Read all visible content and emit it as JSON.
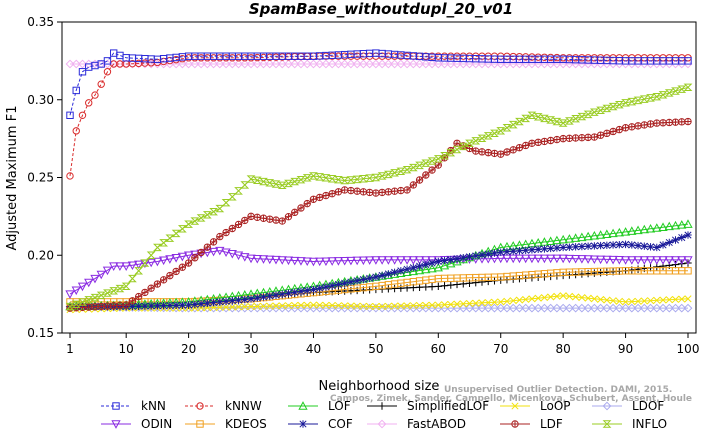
{
  "chart_data": {
    "type": "line",
    "title": "SpamBase_withoutdupl_20_v01",
    "xlabel": "Neighborhood size",
    "ylabel": "Adjusted Maximum F1",
    "xlim": [
      1,
      100
    ],
    "ylim": [
      0.15,
      0.35
    ],
    "xticks": [
      1,
      10,
      20,
      30,
      40,
      50,
      60,
      70,
      80,
      90,
      100
    ],
    "yticks": [
      0.15,
      0.2,
      0.25,
      0.3,
      0.35
    ],
    "ytick_labels": [
      "0.15",
      "0.20",
      "0.25",
      "0.30",
      "0.35"
    ],
    "grid": false,
    "legend_position": "bottom",
    "watermark": [
      "Campos, Zimek, Sander, Campello, Micenkova, Schubert, Assent, Houle",
      "Unsupervised Outlier Detection. DAMI, 2015."
    ],
    "series": [
      {
        "name": "kNN",
        "color": "#2b2bd9",
        "marker": "square",
        "dashed": true,
        "points": [
          [
            1,
            0.29
          ],
          [
            2,
            0.306
          ],
          [
            3,
            0.318
          ],
          [
            4,
            0.321
          ],
          [
            5,
            0.322
          ],
          [
            6,
            0.323
          ],
          [
            7,
            0.325
          ],
          [
            8,
            0.33
          ],
          [
            10,
            0.327
          ],
          [
            15,
            0.326
          ],
          [
            20,
            0.328
          ],
          [
            30,
            0.328
          ],
          [
            40,
            0.328
          ],
          [
            50,
            0.33
          ],
          [
            60,
            0.327
          ],
          [
            70,
            0.326
          ],
          [
            80,
            0.326
          ],
          [
            90,
            0.325
          ],
          [
            100,
            0.325
          ]
        ]
      },
      {
        "name": "kNNW",
        "color": "#d92b2b",
        "marker": "circle",
        "dashed": true,
        "points": [
          [
            1,
            0.251
          ],
          [
            2,
            0.28
          ],
          [
            3,
            0.29
          ],
          [
            4,
            0.298
          ],
          [
            5,
            0.303
          ],
          [
            6,
            0.31
          ],
          [
            7,
            0.318
          ],
          [
            8,
            0.323
          ],
          [
            10,
            0.323
          ],
          [
            15,
            0.324
          ],
          [
            20,
            0.327
          ],
          [
            30,
            0.327
          ],
          [
            40,
            0.328
          ],
          [
            50,
            0.328
          ],
          [
            60,
            0.328
          ],
          [
            70,
            0.328
          ],
          [
            80,
            0.327
          ],
          [
            90,
            0.327
          ],
          [
            100,
            0.327
          ]
        ]
      },
      {
        "name": "LOF",
        "color": "#22cc22",
        "marker": "triangle-up",
        "points": [
          [
            1,
            0.167
          ],
          [
            10,
            0.168
          ],
          [
            20,
            0.17
          ],
          [
            30,
            0.175
          ],
          [
            40,
            0.18
          ],
          [
            50,
            0.186
          ],
          [
            60,
            0.192
          ],
          [
            70,
            0.205
          ],
          [
            80,
            0.21
          ],
          [
            90,
            0.215
          ],
          [
            100,
            0.22
          ]
        ]
      },
      {
        "name": "SimplifiedLOF",
        "color": "#000000",
        "marker": "plus",
        "points": [
          [
            1,
            0.167
          ],
          [
            10,
            0.167
          ],
          [
            20,
            0.168
          ],
          [
            30,
            0.172
          ],
          [
            40,
            0.176
          ],
          [
            50,
            0.178
          ],
          [
            60,
            0.18
          ],
          [
            70,
            0.184
          ],
          [
            80,
            0.187
          ],
          [
            90,
            0.19
          ],
          [
            100,
            0.195
          ]
        ]
      },
      {
        "name": "LoOP",
        "color": "#f2e20c",
        "marker": "x",
        "points": [
          [
            1,
            0.165
          ],
          [
            10,
            0.166
          ],
          [
            20,
            0.166
          ],
          [
            30,
            0.167
          ],
          [
            40,
            0.168
          ],
          [
            50,
            0.167
          ],
          [
            60,
            0.168
          ],
          [
            70,
            0.17
          ],
          [
            80,
            0.174
          ],
          [
            90,
            0.17
          ],
          [
            100,
            0.172
          ]
        ]
      },
      {
        "name": "LDOF",
        "color": "#aaaaee",
        "marker": "diamond",
        "points": [
          [
            1,
            0.167
          ],
          [
            20,
            0.166
          ],
          [
            40,
            0.166
          ],
          [
            60,
            0.166
          ],
          [
            80,
            0.166
          ],
          [
            100,
            0.166
          ]
        ]
      },
      {
        "name": "ODIN",
        "color": "#8a2be2",
        "marker": "triangle-down",
        "points": [
          [
            1,
            0.175
          ],
          [
            5,
            0.185
          ],
          [
            8,
            0.193
          ],
          [
            10,
            0.193
          ],
          [
            15,
            0.196
          ],
          [
            20,
            0.2
          ],
          [
            25,
            0.203
          ],
          [
            30,
            0.198
          ],
          [
            40,
            0.196
          ],
          [
            50,
            0.197
          ],
          [
            60,
            0.197
          ],
          [
            70,
            0.198
          ],
          [
            80,
            0.198
          ],
          [
            90,
            0.197
          ],
          [
            100,
            0.197
          ]
        ]
      },
      {
        "name": "KDEOS",
        "color": "#f0a020",
        "marker": "square",
        "points": [
          [
            1,
            0.17
          ],
          [
            10,
            0.17
          ],
          [
            20,
            0.17
          ],
          [
            30,
            0.172
          ],
          [
            40,
            0.176
          ],
          [
            50,
            0.18
          ],
          [
            60,
            0.185
          ],
          [
            70,
            0.186
          ],
          [
            80,
            0.189
          ],
          [
            90,
            0.19
          ],
          [
            100,
            0.19
          ]
        ]
      },
      {
        "name": "COF",
        "color": "#1a1a99",
        "marker": "star",
        "points": [
          [
            1,
            0.167
          ],
          [
            10,
            0.167
          ],
          [
            20,
            0.168
          ],
          [
            30,
            0.172
          ],
          [
            40,
            0.178
          ],
          [
            50,
            0.186
          ],
          [
            60,
            0.196
          ],
          [
            70,
            0.202
          ],
          [
            80,
            0.205
          ],
          [
            90,
            0.207
          ],
          [
            95,
            0.205
          ],
          [
            100,
            0.213
          ]
        ]
      },
      {
        "name": "FastABOD",
        "color": "#f0b0f0",
        "marker": "diamond",
        "points": [
          [
            1,
            0.323
          ],
          [
            20,
            0.323
          ],
          [
            40,
            0.323
          ],
          [
            60,
            0.323
          ],
          [
            80,
            0.323
          ],
          [
            100,
            0.323
          ]
        ]
      },
      {
        "name": "LDF",
        "color": "#aa2222",
        "marker": "circle-plus",
        "points": [
          [
            1,
            0.166
          ],
          [
            10,
            0.168
          ],
          [
            20,
            0.195
          ],
          [
            25,
            0.212
          ],
          [
            30,
            0.225
          ],
          [
            35,
            0.222
          ],
          [
            40,
            0.236
          ],
          [
            45,
            0.242
          ],
          [
            50,
            0.24
          ],
          [
            55,
            0.242
          ],
          [
            60,
            0.258
          ],
          [
            63,
            0.272
          ],
          [
            66,
            0.267
          ],
          [
            70,
            0.265
          ],
          [
            75,
            0.272
          ],
          [
            80,
            0.275
          ],
          [
            85,
            0.276
          ],
          [
            90,
            0.282
          ],
          [
            95,
            0.285
          ],
          [
            100,
            0.286
          ]
        ]
      },
      {
        "name": "INFLO",
        "color": "#99cc22",
        "marker": "hourglass",
        "points": [
          [
            1,
            0.167
          ],
          [
            10,
            0.18
          ],
          [
            15,
            0.205
          ],
          [
            20,
            0.22
          ],
          [
            25,
            0.23
          ],
          [
            30,
            0.249
          ],
          [
            35,
            0.245
          ],
          [
            40,
            0.251
          ],
          [
            45,
            0.248
          ],
          [
            50,
            0.25
          ],
          [
            55,
            0.255
          ],
          [
            60,
            0.262
          ],
          [
            65,
            0.272
          ],
          [
            70,
            0.28
          ],
          [
            75,
            0.29
          ],
          [
            80,
            0.285
          ],
          [
            85,
            0.292
          ],
          [
            90,
            0.298
          ],
          [
            95,
            0.302
          ],
          [
            100,
            0.308
          ]
        ]
      }
    ]
  }
}
